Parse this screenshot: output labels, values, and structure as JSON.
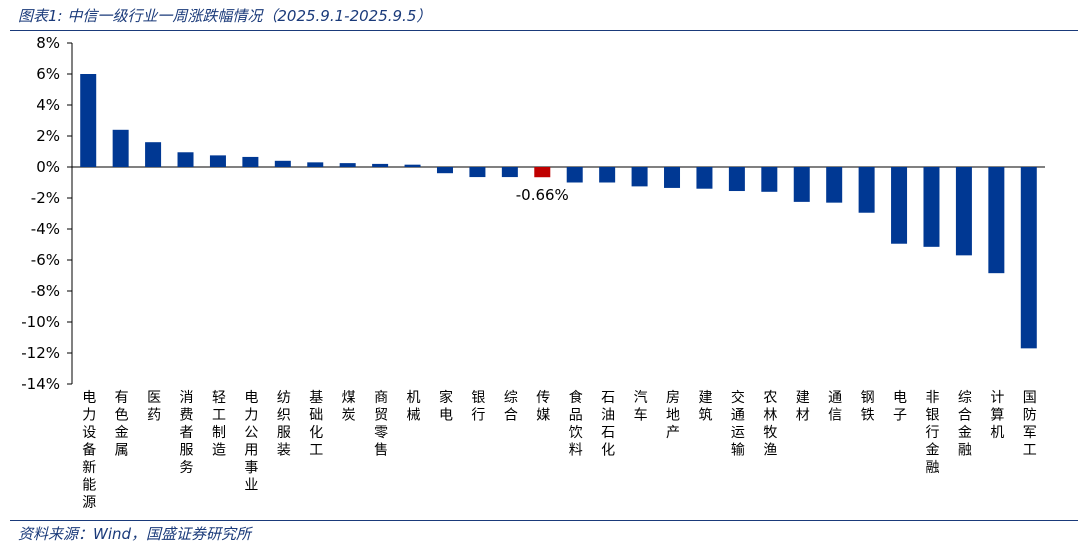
{
  "header": {
    "title": "图表1:  中信一级行业一周涨跌幅情况（2025.9.1-2025.9.5）"
  },
  "footer": {
    "source": "资料来源：Wind，国盛证券研究所"
  },
  "colors": {
    "bar": "#003893",
    "highlight": "#c00000",
    "rule": "#1a3a7a"
  },
  "chart_data": {
    "type": "bar",
    "title": "",
    "xlabel": "",
    "ylabel": "",
    "ylim": [
      -14,
      8
    ],
    "y_ticks": [
      "8%",
      "6%",
      "4%",
      "2%",
      "0%",
      "-2%",
      "-4%",
      "-6%",
      "-8%",
      "-10%",
      "-12%",
      "-14%"
    ],
    "grid": false,
    "highlight_category": "传媒",
    "annotations": [
      {
        "category": "传媒",
        "text": "-0.66%"
      }
    ],
    "categories": [
      "电力设备新能源",
      "有色金属",
      "医药",
      "消费者服务",
      "轻工制造",
      "电力公用事业",
      "纺织服装",
      "基础化工",
      "煤炭",
      "商贸零售",
      "机械",
      "家电",
      "银行",
      "综合",
      "传媒",
      "食品饮料",
      "石油石化",
      "汽车",
      "房地产",
      "建筑",
      "交通运输",
      "农林牧渔",
      "建材",
      "通信",
      "钢铁",
      "电子",
      "非银行金融",
      "综合金融",
      "计算机",
      "国防军工"
    ],
    "values": [
      6.0,
      2.4,
      1.6,
      0.95,
      0.75,
      0.65,
      0.4,
      0.3,
      0.25,
      0.2,
      0.15,
      -0.4,
      -0.65,
      -0.65,
      -0.66,
      -1.0,
      -1.0,
      -1.25,
      -1.35,
      -1.4,
      -1.55,
      -1.6,
      -2.25,
      -2.3,
      -2.95,
      -4.95,
      -5.15,
      -5.7,
      -6.85,
      -11.7
    ]
  }
}
